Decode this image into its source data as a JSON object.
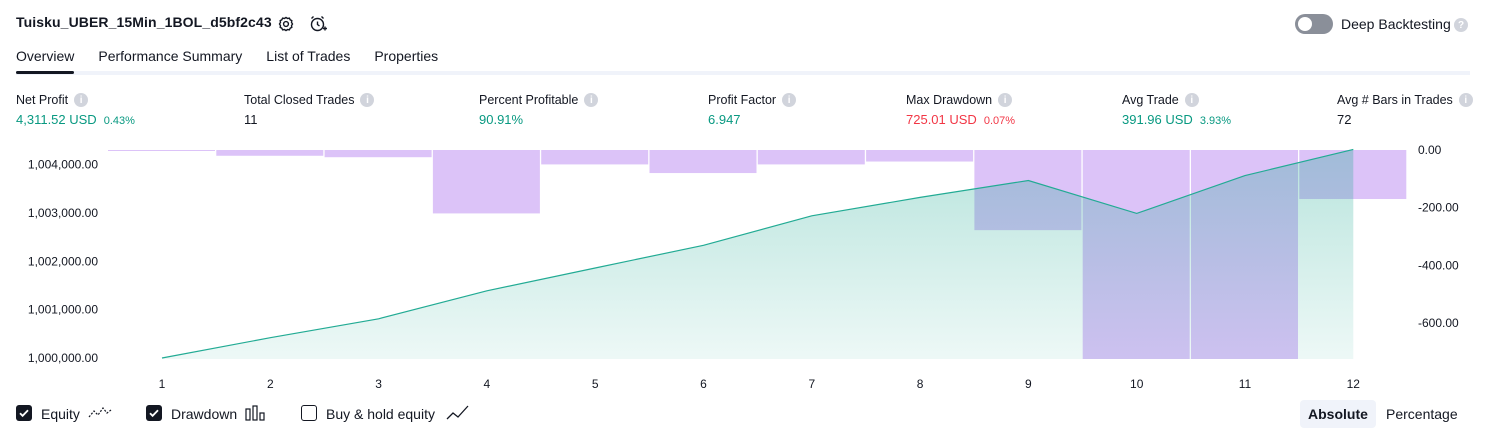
{
  "header": {
    "title": "Tuisku_UBER_15Min_1BOL_d5bf2c43",
    "deep_backtesting_label": "Deep Backtesting",
    "deep_backtesting_enabled": false
  },
  "tabs": [
    {
      "label": "Overview",
      "active": true
    },
    {
      "label": "Performance Summary",
      "active": false
    },
    {
      "label": "List of Trades",
      "active": false
    },
    {
      "label": "Properties",
      "active": false
    }
  ],
  "metrics": {
    "net_profit": {
      "label": "Net Profit",
      "value": "4,311.52 USD",
      "pct": "0.43%"
    },
    "total_closed_trades": {
      "label": "Total Closed Trades",
      "value": "11"
    },
    "percent_profitable": {
      "label": "Percent Profitable",
      "value": "90.91%"
    },
    "profit_factor": {
      "label": "Profit Factor",
      "value": "6.947"
    },
    "max_drawdown": {
      "label": "Max Drawdown",
      "value": "725.01 USD",
      "pct": "0.07%"
    },
    "avg_trade": {
      "label": "Avg Trade",
      "value": "391.96 USD",
      "pct": "3.93%"
    },
    "avg_bars": {
      "label": "Avg # Bars in Trades",
      "value": "72"
    }
  },
  "colors": {
    "positive": "#089981",
    "negative": "#f23645",
    "equity_line": "#22ab94",
    "drawdown_bar": "#d6b8f7"
  },
  "chart_data": {
    "type": "line",
    "x": [
      1,
      2,
      3,
      4,
      5,
      6,
      7,
      8,
      9,
      10,
      11,
      12
    ],
    "y_left_ticks": [
      "1,000,000.00",
      "1,001,000.00",
      "1,002,000.00",
      "1,003,000.00",
      "1,004,000.00"
    ],
    "y_right_ticks": [
      "0.00",
      "-200.00",
      "-400.00",
      "-600.00"
    ],
    "ylim_left": [
      999980,
      1004300
    ],
    "ylim_right": [
      -725.01,
      0
    ],
    "series": [
      {
        "name": "Equity",
        "type": "area",
        "axis": "left",
        "values": [
          1000000,
          1000420,
          1000810,
          1001390,
          1001860,
          1002330,
          1002940,
          1003320,
          1003670,
          1002990,
          1003770,
          1004311.52
        ]
      },
      {
        "name": "Drawdown",
        "type": "bar",
        "axis": "right",
        "values": [
          -2,
          -20,
          -25,
          -220,
          -50,
          -80,
          -50,
          -40,
          -278,
          -725.01,
          -725.01,
          -170
        ]
      }
    ],
    "grid": false,
    "legend": "bottom-left"
  },
  "legend": {
    "equity_label": "Equity",
    "equity_checked": true,
    "drawdown_label": "Drawdown",
    "drawdown_checked": true,
    "buyhold_label": "Buy & hold equity",
    "buyhold_checked": false
  },
  "view_toggle": {
    "absolute_label": "Absolute",
    "percentage_label": "Percentage",
    "selected": "Absolute"
  }
}
